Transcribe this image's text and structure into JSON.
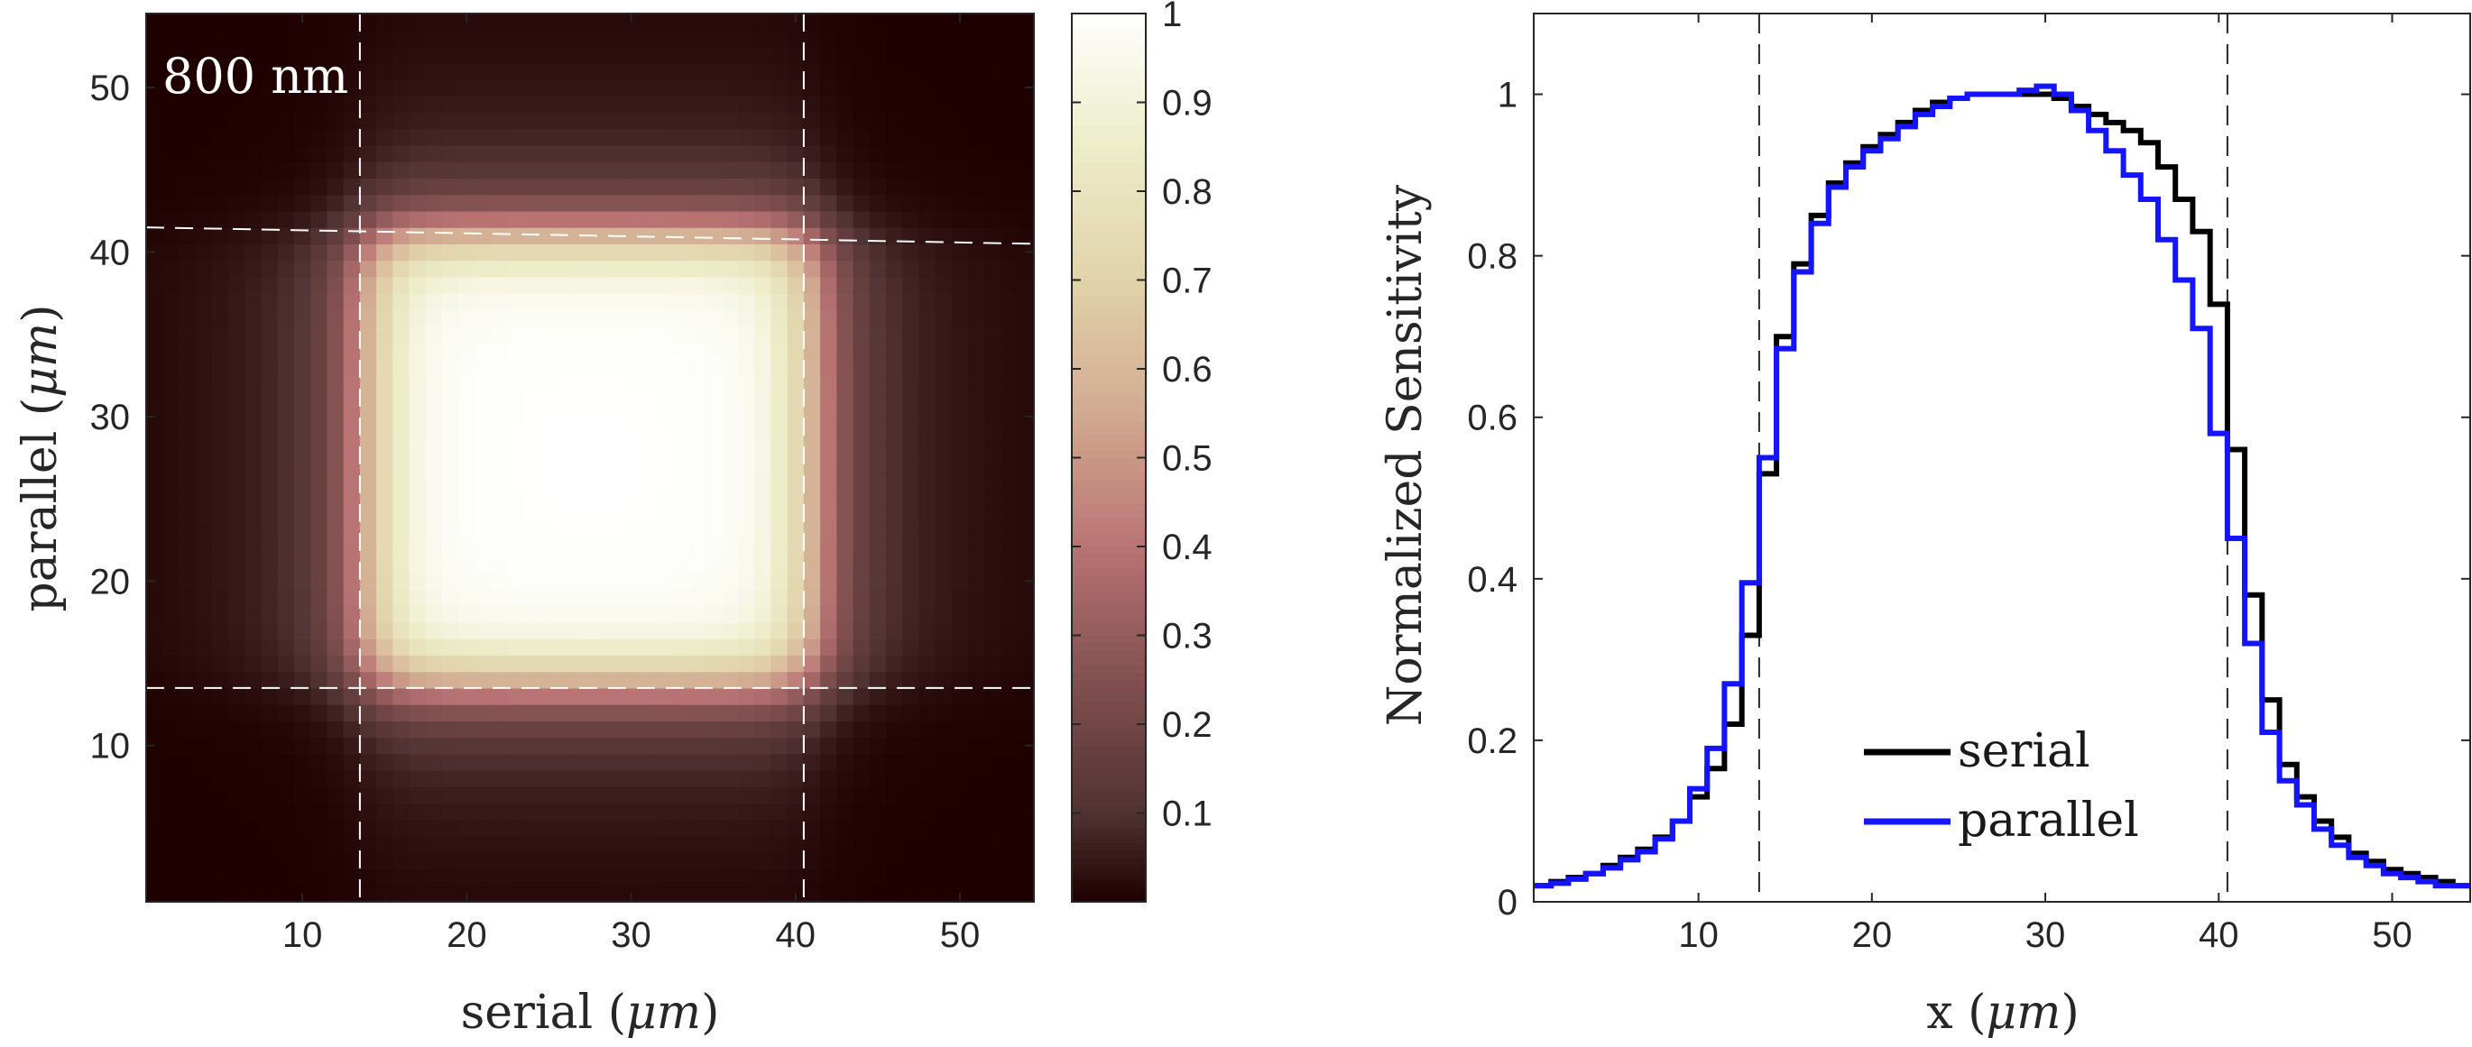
{
  "chart_data": [
    {
      "type": "heatmap",
      "annotation": "800 nm",
      "xlabel_main": "serial (",
      "xlabel_unit": "μm",
      "xlabel_close": ")",
      "ylabel_main": "parallel (",
      "ylabel_unit": "μm",
      "ylabel_close": ")",
      "xlim": [
        0.5,
        54.5
      ],
      "ylim": [
        0.5,
        54.5
      ],
      "xticks": [
        10,
        20,
        30,
        40,
        50
      ],
      "yticks": [
        10,
        20,
        30,
        40,
        50
      ],
      "grid_size": 54,
      "center": [
        27.5,
        27.5
      ],
      "half_width": 13.5,
      "edge_softness": 1.2,
      "falloff": 0.2,
      "peak_tilt": 0.1,
      "dashed_vertical_x": [
        13.5,
        40.5
      ],
      "dashed_bottom_y": 13.5,
      "dashed_top_y": [
        41.5,
        40.5
      ],
      "colormap": "pink",
      "colorbar": {
        "ticks": [
          0.1,
          0.2,
          0.3,
          0.4,
          0.5,
          0.6,
          0.7,
          0.8,
          0.9,
          1
        ],
        "tick_labels": [
          "0.1",
          "0.2",
          "0.3",
          "0.4",
          "0.5",
          "0.6",
          "0.7",
          "0.8",
          "0.9",
          "1"
        ],
        "lim": [
          0,
          1
        ]
      }
    },
    {
      "type": "line",
      "step": true,
      "xlabel_main": "x (",
      "xlabel_unit": "μm",
      "xlabel_close": ")",
      "ylabel": "Normalized Sensitivity",
      "xlim": [
        0.5,
        54.5
      ],
      "ylim": [
        0,
        1.1
      ],
      "xticks": [
        10,
        20,
        30,
        40,
        50
      ],
      "yticks": [
        0,
        0.2,
        0.4,
        0.6,
        0.8,
        1
      ],
      "ytick_labels": [
        "0",
        "0.2",
        "0.4",
        "0.6",
        "0.8",
        "1"
      ],
      "dashed_vertical_x": [
        13.5,
        40.5
      ],
      "legend_position": "bottom-center",
      "x": [
        1,
        2,
        3,
        4,
        5,
        6,
        7,
        8,
        9,
        10,
        11,
        12,
        13,
        14,
        15,
        16,
        17,
        18,
        19,
        20,
        21,
        22,
        23,
        24,
        25,
        26,
        27,
        28,
        29,
        30,
        31,
        32,
        33,
        34,
        35,
        36,
        37,
        38,
        39,
        40,
        41,
        42,
        43,
        44,
        45,
        46,
        47,
        48,
        49,
        50,
        51,
        52,
        53,
        54
      ],
      "series": [
        {
          "name": "serial",
          "color": "#000000",
          "values": [
            0.02,
            0.025,
            0.03,
            0.035,
            0.045,
            0.055,
            0.065,
            0.08,
            0.1,
            0.13,
            0.165,
            0.22,
            0.33,
            0.53,
            0.7,
            0.79,
            0.85,
            0.89,
            0.915,
            0.935,
            0.95,
            0.965,
            0.98,
            0.99,
            0.995,
            1.0,
            1.0,
            1.0,
            1.0,
            1.0,
            0.995,
            0.985,
            0.975,
            0.965,
            0.955,
            0.94,
            0.91,
            0.87,
            0.83,
            0.74,
            0.56,
            0.38,
            0.25,
            0.17,
            0.13,
            0.1,
            0.08,
            0.06,
            0.05,
            0.04,
            0.035,
            0.03,
            0.025,
            0.02
          ]
        },
        {
          "name": "parallel",
          "color": "#1414ff",
          "values": [
            0.02,
            0.023,
            0.028,
            0.035,
            0.042,
            0.052,
            0.062,
            0.078,
            0.1,
            0.14,
            0.19,
            0.27,
            0.395,
            0.55,
            0.685,
            0.78,
            0.84,
            0.885,
            0.91,
            0.93,
            0.945,
            0.96,
            0.975,
            0.985,
            0.995,
            1.0,
            1.0,
            1.0,
            1.005,
            1.01,
            1.0,
            0.98,
            0.955,
            0.93,
            0.9,
            0.87,
            0.82,
            0.77,
            0.71,
            0.58,
            0.45,
            0.32,
            0.21,
            0.15,
            0.12,
            0.09,
            0.07,
            0.055,
            0.045,
            0.035,
            0.03,
            0.025,
            0.02,
            0.02
          ]
        }
      ]
    }
  ]
}
